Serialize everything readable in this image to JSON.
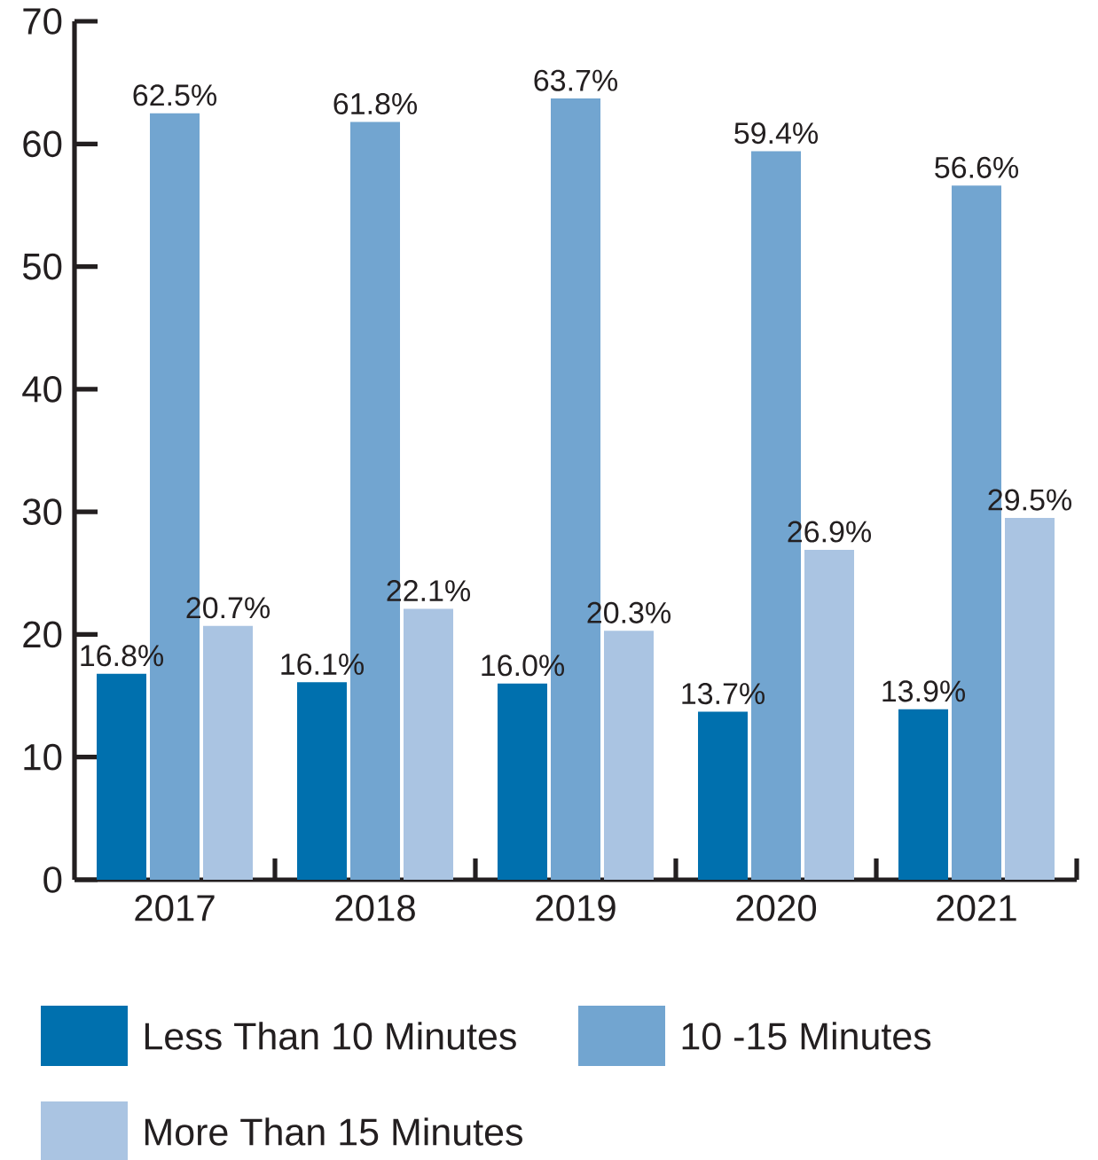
{
  "chart_data": {
    "type": "bar",
    "categories": [
      "2017",
      "2018",
      "2019",
      "2020",
      "2021"
    ],
    "series": [
      {
        "name": "Less Than 10 Minutes",
        "color": "#0070ae",
        "values": [
          16.8,
          16.1,
          16.0,
          13.7,
          13.9
        ],
        "value_labels": [
          "16.8%",
          "16.1%",
          "16.0%",
          "13.7%",
          "13.9%"
        ]
      },
      {
        "name": "10 -15 Minutes",
        "color": "#72a5d0",
        "values": [
          62.5,
          61.8,
          63.7,
          59.4,
          56.6
        ],
        "value_labels": [
          "62.5%",
          "61.8%",
          "63.7%",
          "59.4%",
          "56.6%"
        ]
      },
      {
        "name": "More Than 15 Minutes",
        "color": "#aac4e2",
        "values": [
          20.7,
          22.1,
          20.3,
          26.9,
          29.5
        ],
        "value_labels": [
          "20.7%",
          "22.1%",
          "20.3%",
          "26.9%",
          "29.5%"
        ]
      }
    ],
    "ylim": [
      0,
      70
    ],
    "yticks": [
      0,
      10,
      20,
      30,
      40,
      50,
      60,
      70
    ],
    "legend": "bottom"
  }
}
